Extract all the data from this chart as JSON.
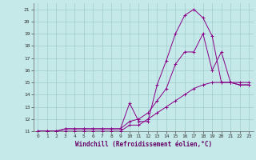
{
  "xlabel": "Windchill (Refroidissement éolien,°C)",
  "xlim": [
    -0.5,
    23.5
  ],
  "ylim": [
    11,
    21.5
  ],
  "xticks": [
    0,
    1,
    2,
    3,
    4,
    5,
    6,
    7,
    8,
    9,
    10,
    11,
    12,
    13,
    14,
    15,
    16,
    17,
    18,
    19,
    20,
    21,
    22,
    23
  ],
  "yticks": [
    11,
    12,
    13,
    14,
    15,
    16,
    17,
    18,
    19,
    20,
    21
  ],
  "background_color": "#c5e8e8",
  "grid_color": "#a0cccc",
  "line_color": "#880088",
  "line1_x": [
    0,
    1,
    2,
    3,
    4,
    5,
    6,
    7,
    8,
    9,
    10,
    11,
    12,
    13,
    14,
    15,
    16,
    17,
    18,
    19,
    20,
    21,
    22,
    23
  ],
  "line1_y": [
    11,
    11,
    11,
    11,
    11,
    11,
    11,
    11,
    11,
    11,
    11.5,
    11.5,
    12,
    12.5,
    13,
    13.5,
    14,
    14.5,
    14.8,
    15,
    15,
    15,
    15,
    15
  ],
  "line2_x": [
    0,
    1,
    2,
    3,
    4,
    5,
    6,
    7,
    8,
    9,
    10,
    11,
    12,
    13,
    14,
    15,
    16,
    17,
    18,
    19,
    20,
    21,
    22,
    23
  ],
  "line2_y": [
    11,
    11,
    11,
    11.2,
    11.2,
    11.2,
    11.2,
    11.2,
    11.2,
    11.2,
    11.8,
    12,
    12.5,
    13.5,
    14.5,
    16.5,
    17.5,
    17.5,
    19,
    16,
    17.5,
    15,
    14.8,
    14.8
  ],
  "line3_x": [
    0,
    1,
    2,
    3,
    4,
    5,
    6,
    7,
    8,
    9,
    10,
    11,
    12,
    13,
    14,
    15,
    16,
    17,
    18,
    19,
    20,
    21,
    22,
    23
  ],
  "line3_y": [
    11,
    11,
    11,
    11.2,
    11.2,
    11.2,
    11.2,
    11.2,
    11.2,
    11.2,
    13.3,
    11.8,
    11.8,
    14.8,
    16.8,
    19,
    20.5,
    21,
    20.3,
    18.8,
    15,
    15,
    14.8,
    14.8
  ]
}
